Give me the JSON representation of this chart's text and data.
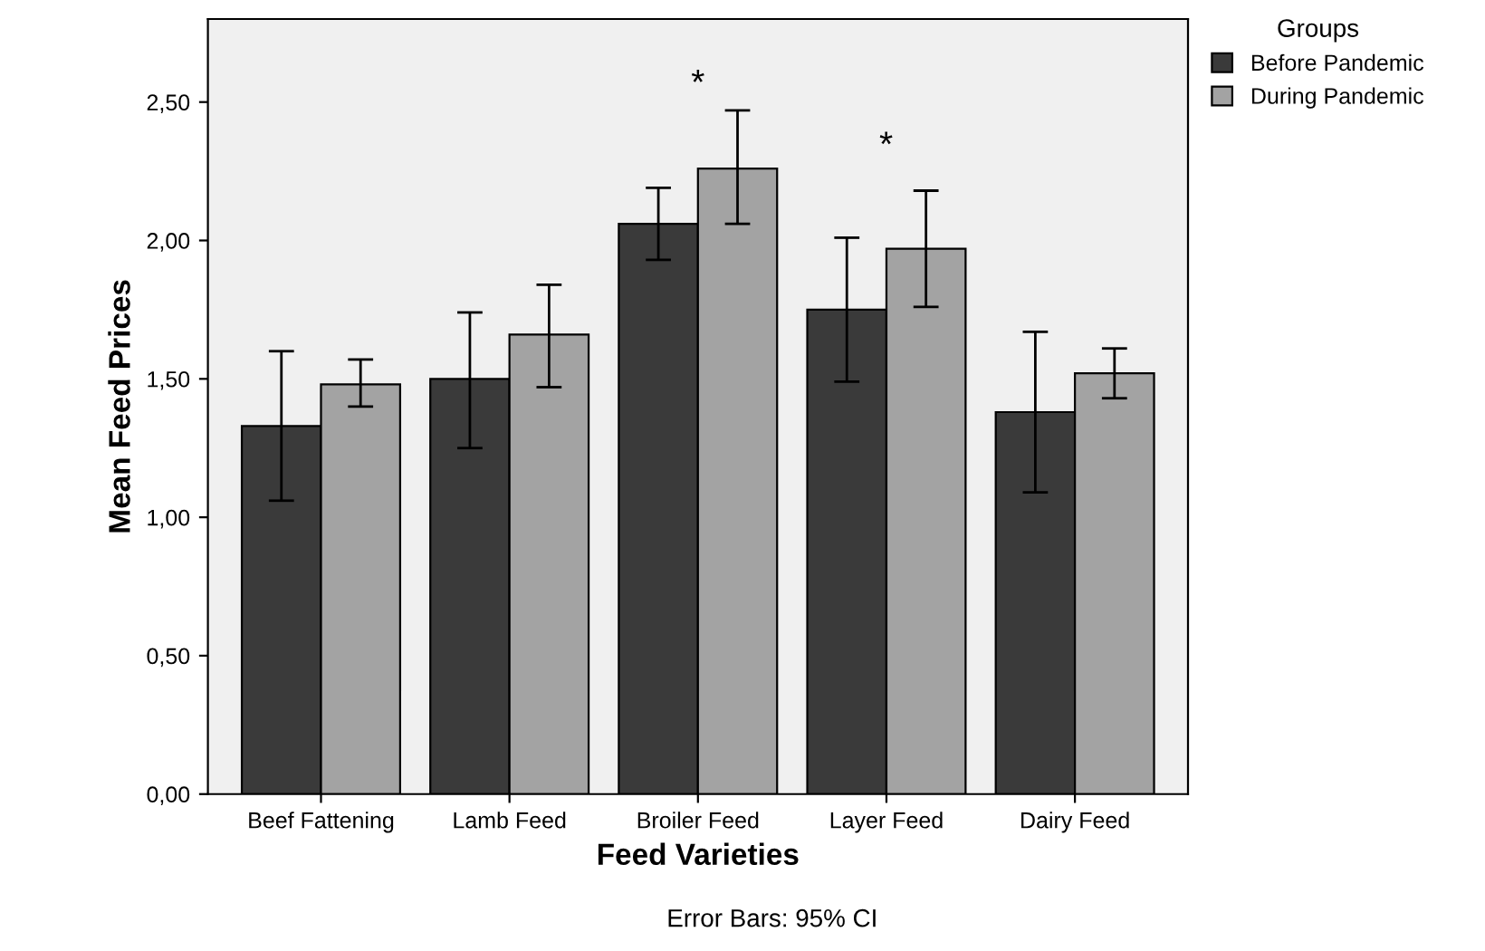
{
  "chart_data": {
    "type": "bar",
    "xlabel": "Feed Varieties",
    "ylabel": "Mean Feed Prices",
    "legend_title": "Groups",
    "legend": "top right",
    "grid": false,
    "categories": [
      "Beef Fattening",
      "Lamb Feed",
      "Broiler Feed",
      "Layer Feed",
      "Dairy Feed"
    ],
    "series": [
      {
        "name": "Before Pandemic",
        "color": "#3a3a3a",
        "values": [
          1.33,
          1.5,
          2.06,
          1.75,
          1.38
        ],
        "errors": [
          [
            1.06,
            1.6
          ],
          [
            1.25,
            1.74
          ],
          [
            1.93,
            2.19
          ],
          [
            1.49,
            2.01
          ],
          [
            1.09,
            1.67
          ]
        ]
      },
      {
        "name": "During Pandemic",
        "color": "#a3a3a3",
        "values": [
          1.48,
          1.66,
          2.26,
          1.97,
          1.52
        ],
        "errors": [
          [
            1.4,
            1.57
          ],
          [
            1.47,
            1.84
          ],
          [
            2.06,
            2.47
          ],
          [
            1.76,
            2.18
          ],
          [
            1.43,
            1.61
          ]
        ]
      }
    ],
    "ylim": [
      0,
      2.8
    ],
    "yticks": [
      {
        "value": 0,
        "label": "0,00"
      },
      {
        "value": 0.5,
        "label": "0,50"
      },
      {
        "value": 1,
        "label": "1,00"
      },
      {
        "value": 1.5,
        "label": "1,50"
      },
      {
        "value": 2,
        "label": "2,00"
      },
      {
        "value": 2.5,
        "label": "2,50"
      }
    ],
    "annotations": [
      "*",
      "*",
      "Error Bars: 95% CI"
    ]
  }
}
